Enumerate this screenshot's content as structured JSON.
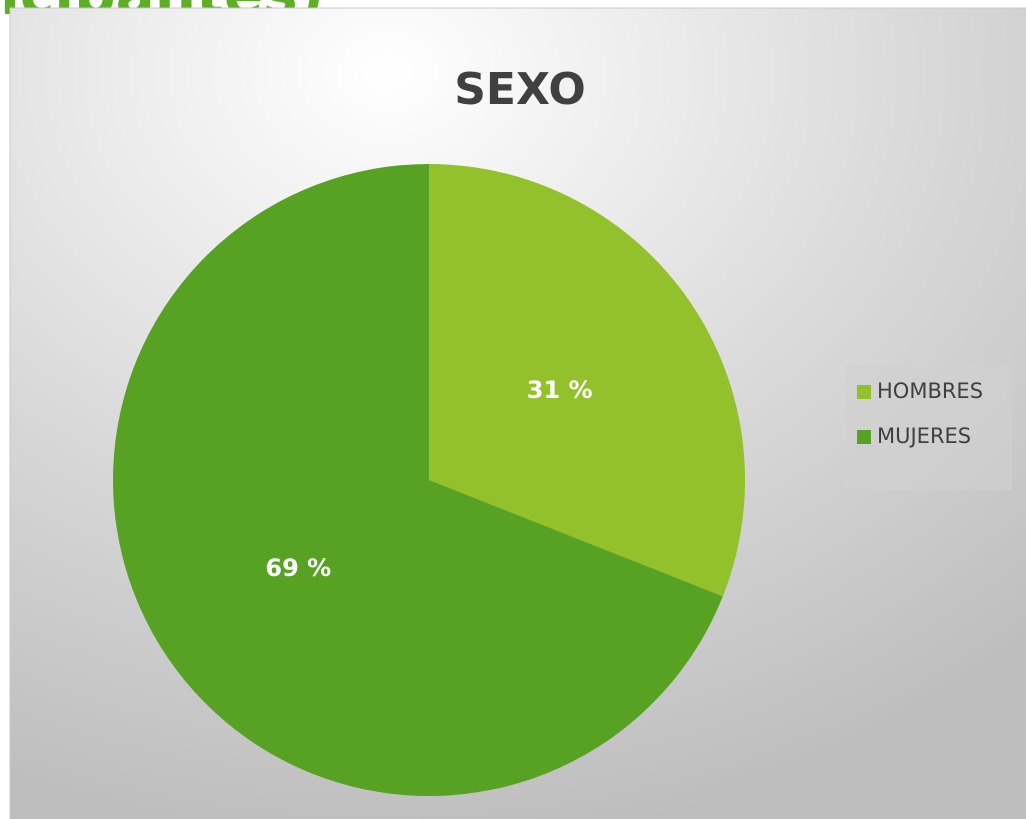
{
  "page_heading": "icipantes)",
  "chart_data": {
    "type": "pie",
    "title": "SEXO",
    "categories": [
      "HOMBRES",
      "MUJERES"
    ],
    "values": [
      31,
      69
    ],
    "value_labels": [
      "31 %",
      "69 %"
    ],
    "colors": [
      "#93c12b",
      "#57a123"
    ],
    "legend": "right"
  }
}
